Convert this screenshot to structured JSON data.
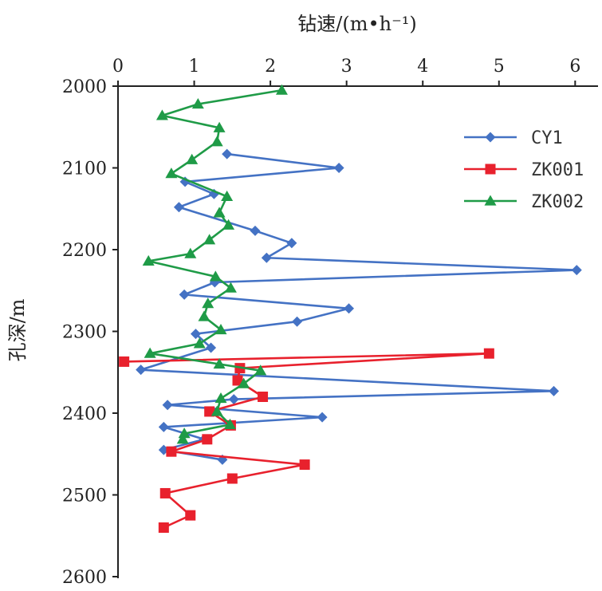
{
  "chart_data": {
    "type": "line",
    "x_axis_title": "钻速/(m•h⁻¹)",
    "y_axis_title": "孔深/m",
    "xlim": [
      0,
      6.3
    ],
    "ylim": [
      2600,
      2000
    ],
    "x_ticks": [
      0,
      1,
      2,
      3,
      4,
      5,
      6
    ],
    "y_ticks": [
      2000,
      2100,
      2200,
      2300,
      2400,
      2500,
      2600
    ],
    "legend_position": "top-right",
    "series": [
      {
        "name": "CY1",
        "color": "#4472c4",
        "marker": "diamond",
        "points": [
          [
            1.43,
            2083
          ],
          [
            2.9,
            2100
          ],
          [
            0.88,
            2117
          ],
          [
            1.26,
            2132
          ],
          [
            0.8,
            2148
          ],
          [
            1.8,
            2177
          ],
          [
            2.28,
            2192
          ],
          [
            1.95,
            2210
          ],
          [
            6.02,
            2225
          ],
          [
            1.27,
            2240
          ],
          [
            0.87,
            2255
          ],
          [
            3.03,
            2272
          ],
          [
            2.35,
            2288
          ],
          [
            1.02,
            2303
          ],
          [
            1.22,
            2320
          ],
          [
            0.3,
            2347
          ],
          [
            5.72,
            2373
          ],
          [
            1.52,
            2383
          ],
          [
            0.65,
            2390
          ],
          [
            2.68,
            2405
          ],
          [
            0.6,
            2417
          ],
          [
            1.13,
            2432
          ],
          [
            0.6,
            2445
          ],
          [
            1.37,
            2457
          ]
        ]
      },
      {
        "name": "ZK001",
        "color": "#e8212d",
        "marker": "square",
        "points": [
          [
            0.08,
            2337
          ],
          [
            4.87,
            2327
          ],
          [
            1.6,
            2345
          ],
          [
            1.57,
            2360
          ],
          [
            1.9,
            2380
          ],
          [
            1.2,
            2398
          ],
          [
            1.48,
            2415
          ],
          [
            1.17,
            2432
          ],
          [
            0.7,
            2447
          ],
          [
            2.45,
            2463
          ],
          [
            1.5,
            2480
          ],
          [
            0.62,
            2498
          ],
          [
            0.95,
            2525
          ],
          [
            0.6,
            2540
          ]
        ]
      },
      {
        "name": "ZK002",
        "color": "#1f9b47",
        "marker": "triangle",
        "points": [
          [
            2.15,
            2005
          ],
          [
            1.05,
            2022
          ],
          [
            0.58,
            2036
          ],
          [
            1.33,
            2051
          ],
          [
            1.3,
            2068
          ],
          [
            0.97,
            2090
          ],
          [
            0.7,
            2107
          ],
          [
            1.43,
            2135
          ],
          [
            1.33,
            2155
          ],
          [
            1.45,
            2170
          ],
          [
            1.2,
            2188
          ],
          [
            0.95,
            2205
          ],
          [
            0.4,
            2214
          ],
          [
            1.28,
            2233
          ],
          [
            1.48,
            2247
          ],
          [
            1.18,
            2266
          ],
          [
            1.13,
            2282
          ],
          [
            1.35,
            2298
          ],
          [
            1.07,
            2315
          ],
          [
            0.42,
            2327
          ],
          [
            1.33,
            2340
          ],
          [
            1.87,
            2348
          ],
          [
            1.65,
            2364
          ],
          [
            1.35,
            2382
          ],
          [
            1.3,
            2398
          ],
          [
            1.47,
            2414
          ],
          [
            0.87,
            2425
          ],
          [
            0.85,
            2432
          ]
        ]
      }
    ]
  }
}
